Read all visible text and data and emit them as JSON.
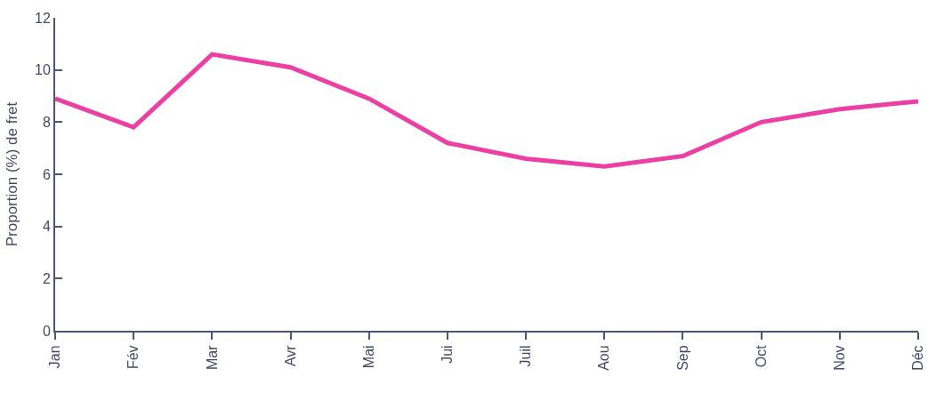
{
  "chart_data": {
    "type": "line",
    "ylabel": "Proportion (%) de fret",
    "categories": [
      "Jan",
      "Fév",
      "Mar",
      "Avr",
      "Mai",
      "Jui",
      "Juil",
      "Aou",
      "Sep",
      "Oct",
      "Nov",
      "Déc"
    ],
    "series": [
      {
        "color": "#ec3fa4",
        "values": [
          8.9,
          7.8,
          10.6,
          10.1,
          8.9,
          7.2,
          6.6,
          6.3,
          6.7,
          8.0,
          8.5,
          8.8
        ]
      }
    ],
    "ylim": [
      0,
      12
    ],
    "yticks": [
      0,
      2,
      4,
      6,
      8,
      10,
      12
    ],
    "marker": "none",
    "line_style": "solid"
  }
}
